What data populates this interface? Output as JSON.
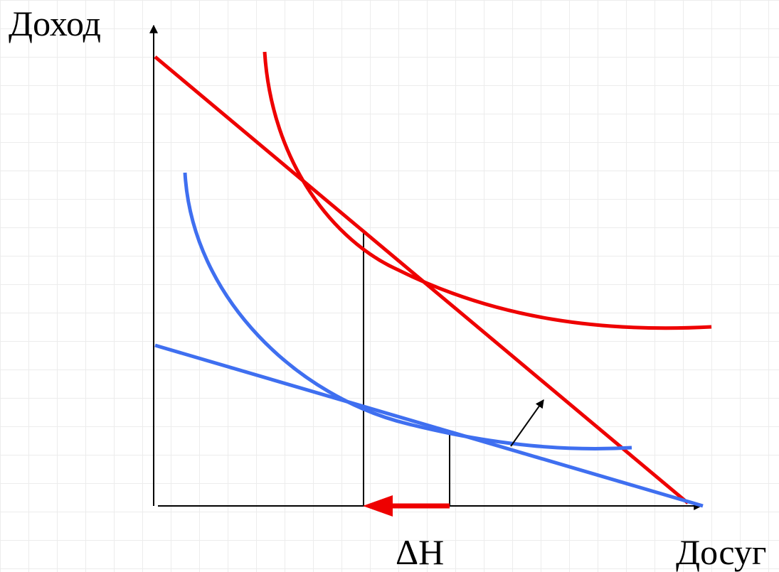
{
  "y_axis_label": "Доход",
  "x_axis_label": "Досуг",
  "delta_label": "ΔH",
  "colors": {
    "high_curves": "#ee0000",
    "low_curves": "#3f6ff0",
    "axes": "#000000"
  }
}
